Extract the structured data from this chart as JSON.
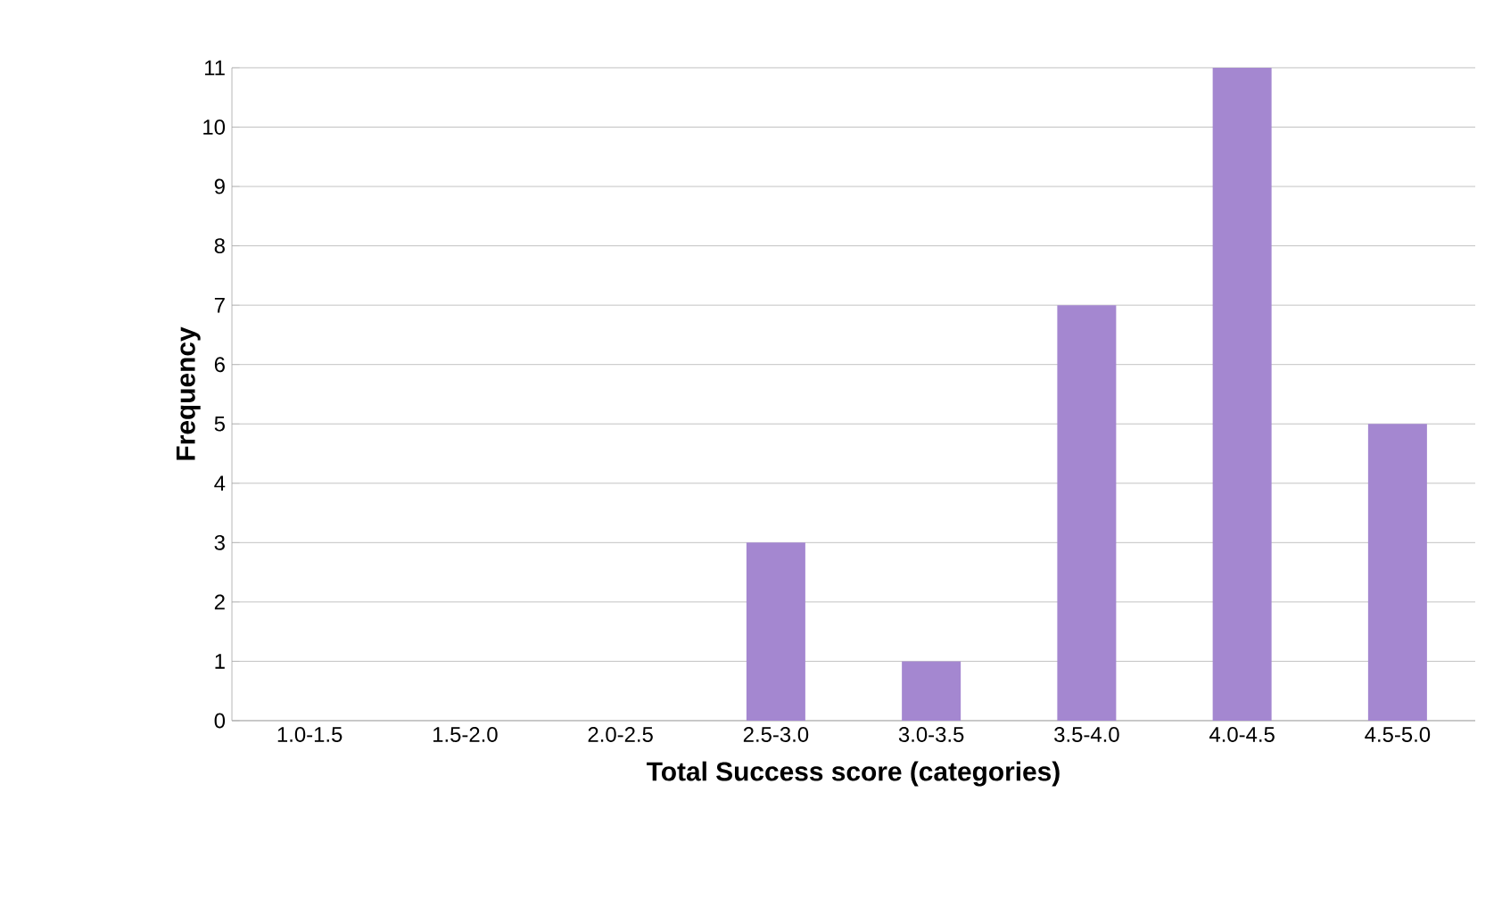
{
  "chart_data": {
    "type": "bar",
    "xlabel": "Total Success score (categories)",
    "ylabel": "Frequency",
    "categories": [
      "1.0-1.5",
      "1.5-2.0",
      "2.0-2.5",
      "2.5-3.0",
      "3.0-3.5",
      "3.5-4.0",
      "4.0-4.5",
      "4.5-5.0"
    ],
    "values": [
      0,
      0,
      0,
      3,
      1,
      7,
      11,
      5
    ],
    "color": "#a487d0",
    "ylim": [
      0,
      11
    ],
    "yticks": [
      0,
      1,
      2,
      3,
      4,
      5,
      6,
      7,
      8,
      9,
      10,
      11
    ],
    "grid": "y"
  }
}
